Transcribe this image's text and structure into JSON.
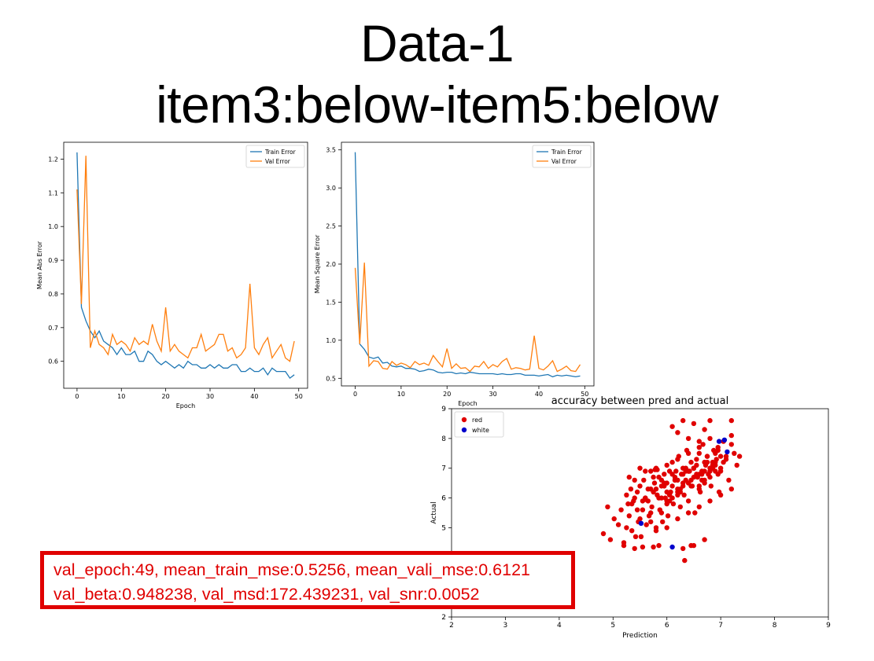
{
  "slide": {
    "title_line1": "Data-1",
    "title_line2": "item3:below-item5:below"
  },
  "overlay": {
    "line1": "val_epoch:49, mean_train_mse:0.5256, mean_vali_mse:0.6121",
    "line2": "val_beta:0.948238, val_msd:172.439231, val_snr:0.0052",
    "color": "#e00000"
  },
  "chart_data": [
    {
      "type": "line",
      "xlabel": "Epoch",
      "ylabel": "Mean Abs Error",
      "xlim": [
        -3,
        52
      ],
      "ylim": [
        0.52,
        1.25
      ],
      "xticks": [
        0,
        10,
        20,
        30,
        40,
        50
      ],
      "yticks": [
        0.6,
        0.7,
        0.8,
        0.9,
        1.0,
        1.1,
        1.2
      ],
      "ytick_labels": [
        "0.6",
        "0.7",
        "0.8",
        "0.9",
        "1.0",
        "1.1",
        "1.2"
      ],
      "legend": "top-right",
      "grid": false,
      "x": [
        0,
        1,
        2,
        3,
        4,
        5,
        6,
        7,
        8,
        9,
        10,
        11,
        12,
        13,
        14,
        15,
        16,
        17,
        18,
        19,
        20,
        21,
        22,
        23,
        24,
        25,
        26,
        27,
        28,
        29,
        30,
        31,
        32,
        33,
        34,
        35,
        36,
        37,
        38,
        39,
        40,
        41,
        42,
        43,
        44,
        45,
        46,
        47,
        48,
        49
      ],
      "series": [
        {
          "name": "Train Error",
          "color": "#1f77b4",
          "values": [
            1.22,
            0.76,
            0.72,
            0.69,
            0.67,
            0.69,
            0.66,
            0.65,
            0.64,
            0.62,
            0.64,
            0.62,
            0.62,
            0.63,
            0.6,
            0.6,
            0.63,
            0.62,
            0.6,
            0.59,
            0.6,
            0.59,
            0.58,
            0.59,
            0.58,
            0.6,
            0.59,
            0.59,
            0.58,
            0.58,
            0.59,
            0.58,
            0.59,
            0.58,
            0.58,
            0.59,
            0.59,
            0.57,
            0.57,
            0.58,
            0.57,
            0.57,
            0.58,
            0.56,
            0.58,
            0.57,
            0.57,
            0.57,
            0.55,
            0.56
          ]
        },
        {
          "name": "Val Error",
          "color": "#ff7f0e",
          "values": [
            1.11,
            0.77,
            1.21,
            0.64,
            0.69,
            0.65,
            0.64,
            0.62,
            0.68,
            0.65,
            0.66,
            0.65,
            0.63,
            0.67,
            0.65,
            0.66,
            0.65,
            0.71,
            0.66,
            0.63,
            0.76,
            0.63,
            0.65,
            0.63,
            0.62,
            0.61,
            0.64,
            0.64,
            0.68,
            0.63,
            0.64,
            0.65,
            0.68,
            0.68,
            0.63,
            0.64,
            0.61,
            0.62,
            0.64,
            0.83,
            0.64,
            0.62,
            0.65,
            0.67,
            0.61,
            0.63,
            0.65,
            0.61,
            0.6,
            0.66
          ]
        }
      ]
    },
    {
      "type": "line",
      "xlabel": "Epoch",
      "ylabel": "Mean Square Error",
      "xlim": [
        -3,
        52
      ],
      "ylim": [
        0.4,
        3.6
      ],
      "xticks": [
        0,
        10,
        20,
        30,
        40,
        50
      ],
      "yticks": [
        0.5,
        1.0,
        1.5,
        2.0,
        2.5,
        3.0,
        3.5
      ],
      "ytick_labels": [
        "0.5",
        "1.0",
        "1.5",
        "2.0",
        "2.5",
        "3.0",
        "3.5"
      ],
      "legend": "top-right",
      "grid": false,
      "x": [
        0,
        1,
        2,
        3,
        4,
        5,
        6,
        7,
        8,
        9,
        10,
        11,
        12,
        13,
        14,
        15,
        16,
        17,
        18,
        19,
        20,
        21,
        22,
        23,
        24,
        25,
        26,
        27,
        28,
        29,
        30,
        31,
        32,
        33,
        34,
        35,
        36,
        37,
        38,
        39,
        40,
        41,
        42,
        43,
        44,
        45,
        46,
        47,
        48,
        49
      ],
      "series": [
        {
          "name": "Train Error",
          "color": "#1f77b4",
          "values": [
            3.47,
            0.95,
            0.88,
            0.78,
            0.76,
            0.78,
            0.7,
            0.71,
            0.66,
            0.65,
            0.66,
            0.63,
            0.63,
            0.62,
            0.59,
            0.6,
            0.62,
            0.61,
            0.58,
            0.57,
            0.58,
            0.58,
            0.56,
            0.57,
            0.56,
            0.58,
            0.57,
            0.56,
            0.56,
            0.56,
            0.56,
            0.55,
            0.56,
            0.55,
            0.55,
            0.56,
            0.56,
            0.54,
            0.54,
            0.54,
            0.53,
            0.54,
            0.55,
            0.52,
            0.54,
            0.53,
            0.54,
            0.53,
            0.52,
            0.53
          ]
        },
        {
          "name": "Val Error",
          "color": "#ff7f0e",
          "values": [
            1.95,
            0.95,
            2.02,
            0.66,
            0.73,
            0.72,
            0.63,
            0.62,
            0.72,
            0.67,
            0.7,
            0.68,
            0.64,
            0.72,
            0.68,
            0.7,
            0.67,
            0.8,
            0.72,
            0.65,
            0.89,
            0.63,
            0.69,
            0.63,
            0.64,
            0.59,
            0.66,
            0.65,
            0.72,
            0.63,
            0.68,
            0.65,
            0.72,
            0.76,
            0.62,
            0.64,
            0.63,
            0.61,
            0.62,
            1.06,
            0.63,
            0.61,
            0.66,
            0.73,
            0.59,
            0.62,
            0.66,
            0.6,
            0.59,
            0.68
          ]
        }
      ]
    },
    {
      "type": "scatter",
      "title": "accuracy between pred and actual",
      "xlabel": "Prediction",
      "ylabel": "Actual",
      "xlim": [
        2,
        9
      ],
      "ylim": [
        2,
        9
      ],
      "xticks": [
        2,
        3,
        4,
        5,
        6,
        7,
        8,
        9
      ],
      "yticks": [
        2,
        3,
        4,
        5,
        6,
        7,
        8,
        9
      ],
      "legend": "top-left",
      "grid": false,
      "series": [
        {
          "name": "red",
          "color": "#e00000",
          "x": [
            4.82,
            4.9,
            4.95,
            5.02,
            5.1,
            5.15,
            5.2,
            5.25,
            5.28,
            5.3,
            5.33,
            5.35,
            5.38,
            5.4,
            5.42,
            5.45,
            5.47,
            5.5,
            5.52,
            5.55,
            5.57,
            5.6,
            5.62,
            5.65,
            5.67,
            5.7,
            5.72,
            5.75,
            5.77,
            5.8,
            5.82,
            5.85,
            5.87,
            5.9,
            5.92,
            5.95,
            5.97,
            6.0,
            6.02,
            6.05,
            6.07,
            6.1,
            6.12,
            6.15,
            6.17,
            6.2,
            6.22,
            6.25,
            6.27,
            6.3,
            6.32,
            6.35,
            6.37,
            6.4,
            6.42,
            6.45,
            6.47,
            6.5,
            6.52,
            6.55,
            6.57,
            6.6,
            6.62,
            6.65,
            6.67,
            6.7,
            6.72,
            6.75,
            6.77,
            6.8,
            6.82,
            6.85,
            6.87,
            6.9,
            6.92,
            6.95,
            6.97,
            7.0,
            7.05,
            7.1,
            7.15,
            7.2,
            7.25,
            7.3,
            7.35,
            5.6,
            5.7,
            5.8,
            5.9,
            6.0,
            6.1,
            6.2,
            6.3,
            6.4,
            6.5,
            6.6,
            6.7,
            6.8,
            6.9,
            7.0,
            7.1,
            7.2,
            5.5,
            5.65,
            5.75,
            5.85,
            5.95,
            6.05,
            6.15,
            6.25,
            6.35,
            6.45,
            6.55,
            6.65,
            6.75,
            6.85,
            6.95,
            5.35,
            5.45,
            5.55,
            5.95,
            6.05,
            6.15,
            6.25,
            6.35,
            6.45,
            6.55,
            6.65,
            6.75,
            6.85,
            6.95,
            7.05,
            6.1,
            6.2,
            6.3,
            6.4,
            6.5,
            6.6,
            6.7,
            6.8,
            6.3,
            6.5,
            6.7,
            5.4,
            5.6,
            5.8,
            6.0,
            6.2,
            6.4,
            6.6,
            5.7,
            5.9,
            6.0,
            6.1,
            6.2,
            6.3,
            6.4,
            6.5,
            6.6,
            6.7,
            6.8,
            6.9,
            5.3,
            5.5,
            5.7,
            5.9,
            6.0,
            6.1,
            6.2,
            6.3,
            6.4,
            6.5,
            6.6,
            6.7,
            6.8,
            6.9,
            7.0,
            7.2,
            5.8,
            6.0,
            6.2,
            6.4,
            6.6,
            6.8,
            7.0,
            7.2,
            6.33,
            5.4,
            5.55,
            5.75,
            5.85,
            6.45,
            5.25,
            5.2,
            5.6,
            5.78,
            5.82
          ],
          "y": [
            4.8,
            5.7,
            4.6,
            5.3,
            5.1,
            5.6,
            4.5,
            6.1,
            5.8,
            5.4,
            6.3,
            4.9,
            5.9,
            6.0,
            4.7,
            5.6,
            5.2,
            6.4,
            4.7,
            5.9,
            6.6,
            6.0,
            5.1,
            6.3,
            5.4,
            6.9,
            5.7,
            6.2,
            6.5,
            5.0,
            6.1,
            6.7,
            5.6,
            6.4,
            5.2,
            6.8,
            6.0,
            6.5,
            5.4,
            6.9,
            6.2,
            7.2,
            5.8,
            6.6,
            6.9,
            6.3,
            7.4,
            5.7,
            6.8,
            7.0,
            6.1,
            6.6,
            7.6,
            5.9,
            6.9,
            7.2,
            6.4,
            7.0,
            5.5,
            7.3,
            6.7,
            7.5,
            6.2,
            6.9,
            7.8,
            6.6,
            7.1,
            7.4,
            6.8,
            8.0,
            6.4,
            7.2,
            7.6,
            6.9,
            7.3,
            7.7,
            6.2,
            7.0,
            7.9,
            7.4,
            6.6,
            8.6,
            7.5,
            7.1,
            7.4,
            6.0,
            5.5,
            6.3,
            6.6,
            6.2,
            6.8,
            6.1,
            6.5,
            6.9,
            7.0,
            6.4,
            7.2,
            6.7,
            7.5,
            6.9,
            7.3,
            8.1,
            5.3,
            5.9,
            6.7,
            6.0,
            6.5,
            6.1,
            6.7,
            6.3,
            6.9,
            6.6,
            7.1,
            6.8,
            7.2,
            7.0,
            7.6,
            5.8,
            6.2,
            5.6,
            6.4,
            5.9,
            6.6,
            6.2,
            7.0,
            6.4,
            6.8,
            6.6,
            7.4,
            7.1,
            6.8,
            7.2,
            8.4,
            8.2,
            8.6,
            8.0,
            8.5,
            7.9,
            8.3,
            8.6,
            4.3,
            4.4,
            4.6,
            6.6,
            6.9,
            7.0,
            7.1,
            7.3,
            7.5,
            7.7,
            5.2,
            5.5,
            5.8,
            6.0,
            6.2,
            6.4,
            6.5,
            6.7,
            6.8,
            6.9,
            7.0,
            7.2,
            6.7,
            7.0,
            6.3,
            6.0,
            5.9,
            6.4,
            6.6,
            6.8,
            6.9,
            7.0,
            6.3,
            6.5,
            6.9,
            7.1,
            7.4,
            7.8,
            4.9,
            5.0,
            5.3,
            5.5,
            5.7,
            5.9,
            6.1,
            6.3,
            3.9,
            4.3,
            4.35,
            4.35,
            4.4,
            4.4,
            5.0,
            4.4,
            5.95,
            6.95,
            6.95
          ]
        },
        {
          "name": "white",
          "color": "#0000cc",
          "x": [
            5.52,
            6.1,
            6.97,
            7.07,
            7.12
          ],
          "y": [
            5.15,
            4.35,
            7.9,
            7.95,
            7.55
          ]
        }
      ]
    }
  ]
}
